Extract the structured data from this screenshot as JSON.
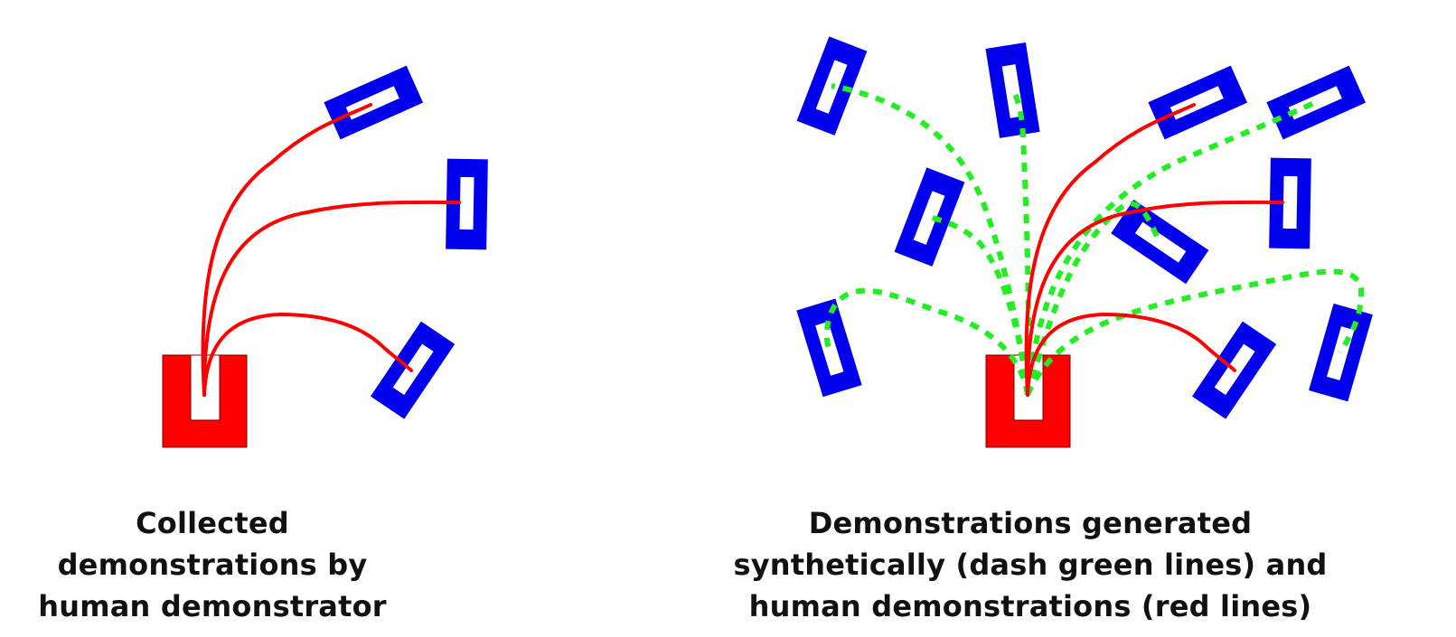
{
  "colors": {
    "goal_fixture": "#0000ee",
    "start_fixture": "#ff0000",
    "human_trajectory": "#ff0000",
    "synthetic_trajectory": "#22ee22",
    "caption_text": "#111111",
    "background": "#ffffff"
  },
  "panels": [
    {
      "id": "left",
      "caption_lines": [
        "Collected",
        "demonstrations by",
        "human demonstrator"
      ],
      "human_demonstration_count": 3,
      "synthetic_demonstration_count": 0
    },
    {
      "id": "right",
      "caption_lines": [
        "Demonstrations generated",
        "synthetically (dash green lines) and",
        "human demonstrations (red lines)"
      ],
      "human_demonstration_count": 3,
      "synthetic_demonstration_count": 7
    }
  ]
}
